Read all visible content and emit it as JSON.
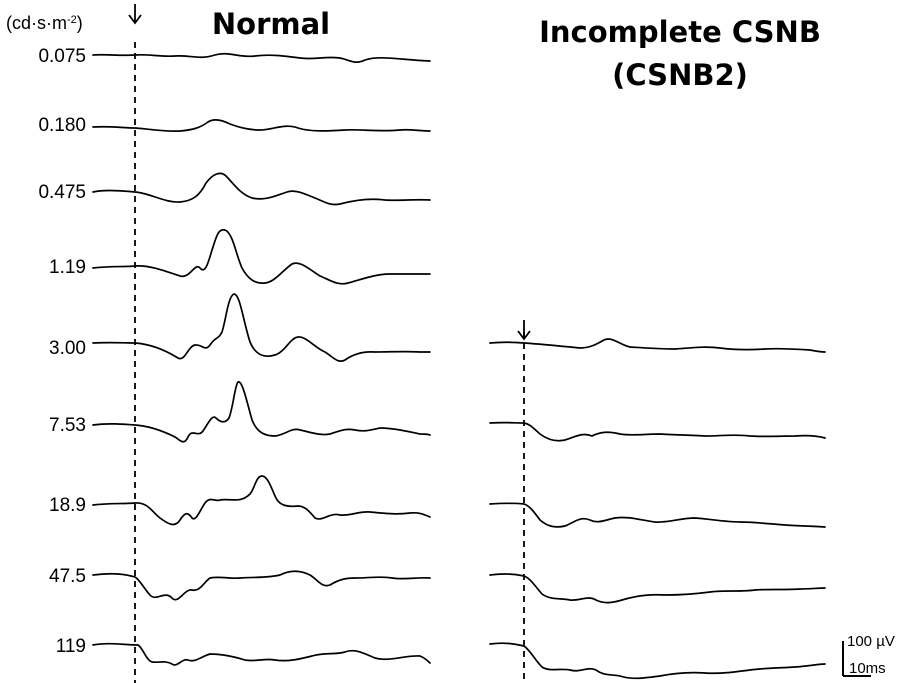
{
  "figure": {
    "unit_label": "(cd·s·m",
    "unit_superscript": "-2",
    "unit_close": ")",
    "normal_title": "Normal",
    "csnb_title_line1": "Incomplete CSNB",
    "csnb_title_line2": "(CSNB2)",
    "scale_amplitude": "100 µV",
    "scale_time": "10ms"
  },
  "luminances": [
    "0.075",
    "0.180",
    "0.475",
    "1.19",
    "3.00",
    "7.53",
    "18.9",
    "47.5",
    "119"
  ],
  "csnb_luminances": [
    "3.00",
    "7.53",
    "18.9",
    "47.5",
    "119"
  ]
}
